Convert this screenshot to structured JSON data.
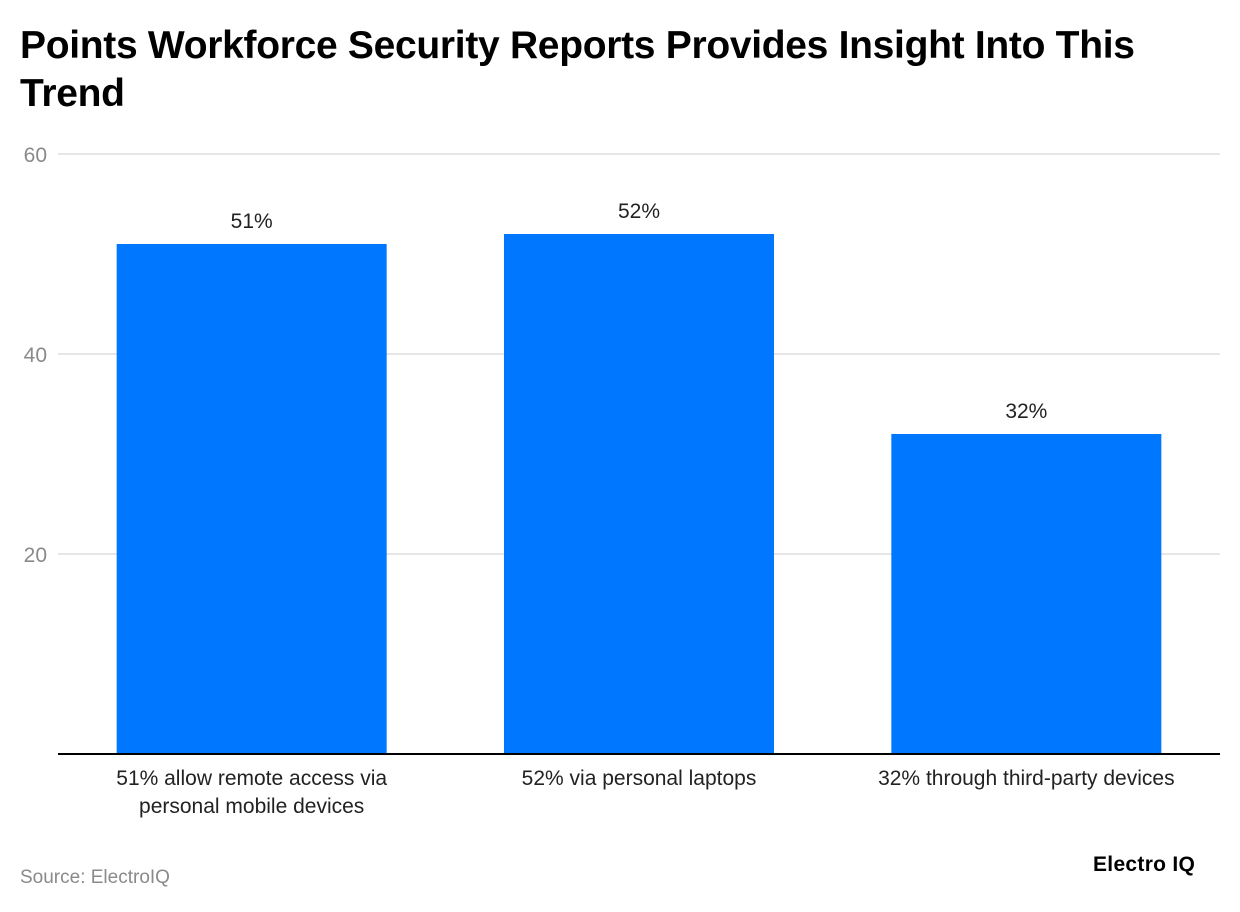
{
  "title": "Points Workforce Security Reports Provides Insight Into This Trend",
  "source": "Source: ElectroIQ",
  "logo": "Electro IQ",
  "colors": {
    "bar": "#0077ff",
    "grid": "#e6e6e6",
    "axis": "#000000",
    "tick_text": "#8a8a8a"
  },
  "chart_data": {
    "type": "bar",
    "title": "Points Workforce Security Reports Provides Insight Into This Trend",
    "categories": [
      [
        "51% allow remote access via",
        "personal mobile devices"
      ],
      [
        "52% via personal laptops"
      ],
      [
        "32% through third-party devices"
      ]
    ],
    "values": [
      51,
      52,
      32
    ],
    "data_labels": [
      "51%",
      "52%",
      "32%"
    ],
    "ylim": [
      0,
      60
    ],
    "yticks": [
      20,
      40,
      60
    ],
    "grid": true,
    "xlabel": "",
    "ylabel": ""
  }
}
